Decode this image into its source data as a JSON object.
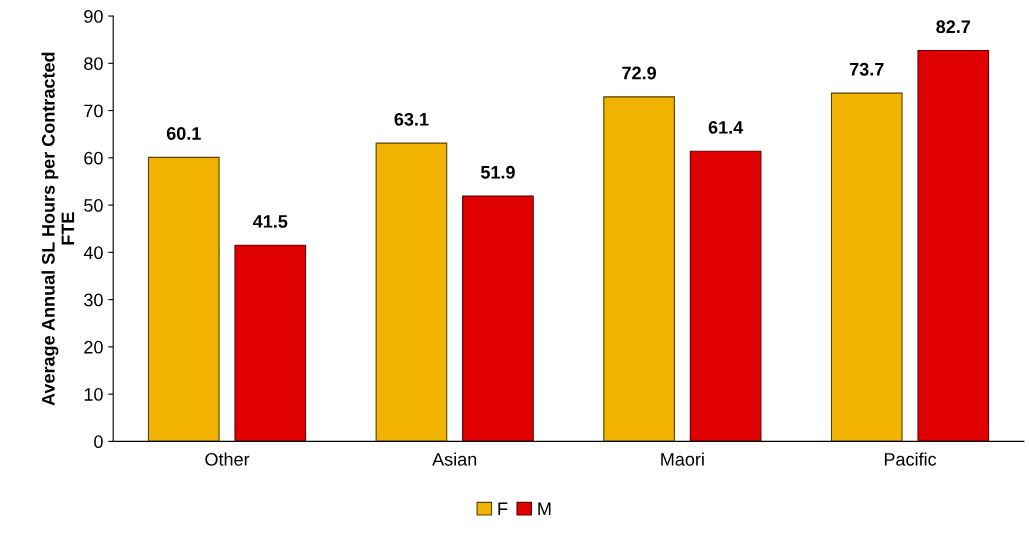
{
  "chart_data": {
    "type": "bar",
    "ylabel": "Average Annual SL Hours per Contracted\nFTE",
    "categories": [
      "Other",
      "Asian",
      "Maori",
      "Pacific"
    ],
    "series": [
      {
        "name": "F",
        "color": "#f0b400",
        "values": [
          60.1,
          63.1,
          72.9,
          73.7
        ]
      },
      {
        "name": "M",
        "color": "#e00000",
        "values": [
          41.5,
          51.9,
          61.4,
          82.7
        ]
      }
    ],
    "ylim": [
      0,
      90
    ],
    "yticks": [
      0,
      10,
      20,
      30,
      40,
      50,
      60,
      70,
      80,
      90
    ],
    "data_labels": true,
    "grid": false,
    "legend": "bottom"
  }
}
